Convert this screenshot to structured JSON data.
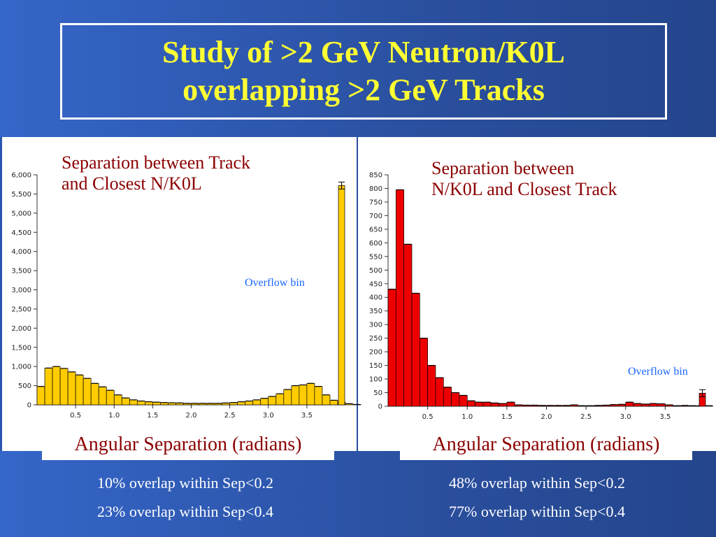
{
  "title": {
    "line1": "Study of >2 GeV Neutron/K0L",
    "line2": "overlapping >2 GeV Tracks"
  },
  "chart_data": [
    {
      "type": "bar",
      "title": "Separation between   Track and Closest N/K0L",
      "title_lines": [
        "Separation between   Track",
        "and Closest N/K0L"
      ],
      "xlabel": "Angular Separation (radians)",
      "ylabel": "",
      "bar_color": "#ffcc00",
      "bin_width": 0.1,
      "x_start": 0.0,
      "xlim": [
        0.0,
        4.0
      ],
      "ylim": [
        0,
        6000
      ],
      "y_ticks": [
        0,
        500,
        1000,
        1500,
        2000,
        2500,
        3000,
        3500,
        4000,
        4500,
        5000,
        5500,
        6000
      ],
      "y_tick_labels": [
        "0",
        "500",
        "1,000",
        "1,500",
        "2,000",
        "2,500",
        "3,000",
        "3,500",
        "4,000",
        "4,500",
        "5,000",
        "5,500",
        "6,000"
      ],
      "x_ticks": [
        0.5,
        1.0,
        1.5,
        2.0,
        2.5,
        3.0,
        3.5
      ],
      "x_tick_labels": [
        "0.5",
        "1.0",
        "1.5",
        "2.0",
        "2.5",
        "3.0",
        "3.5"
      ],
      "values": [
        480,
        960,
        1000,
        950,
        860,
        780,
        690,
        560,
        470,
        380,
        260,
        180,
        130,
        100,
        80,
        70,
        60,
        55,
        50,
        40,
        40,
        40,
        40,
        40,
        50,
        60,
        80,
        100,
        130,
        170,
        220,
        290,
        400,
        500,
        520,
        560,
        480,
        260,
        120,
        70,
        30,
        10
      ],
      "overflow_value": 5720,
      "overflow_label": "Overflow bin"
    },
    {
      "type": "bar",
      "title": "Separation between N/K0L and Closest Track",
      "title_lines": [
        "Separation between",
        "N/K0L and Closest Track"
      ],
      "xlabel": "Angular Separation (radians)",
      "ylabel": "",
      "bar_color": "#ee0000",
      "bin_width": 0.1,
      "x_start": 0.0,
      "xlim": [
        0.0,
        4.0
      ],
      "ylim": [
        0,
        850
      ],
      "y_ticks": [
        0,
        50,
        100,
        150,
        200,
        250,
        300,
        350,
        400,
        450,
        500,
        550,
        600,
        650,
        700,
        750,
        800,
        850
      ],
      "y_tick_labels": [
        "0",
        "50",
        "100",
        "150",
        "200",
        "250",
        "300",
        "350",
        "400",
        "450",
        "500",
        "550",
        "600",
        "650",
        "700",
        "750",
        "800",
        "850"
      ],
      "x_ticks": [
        0.5,
        1.0,
        1.5,
        2.0,
        2.5,
        3.0,
        3.5
      ],
      "x_tick_labels": [
        "0.5",
        "1.0",
        "1.5",
        "2.0",
        "2.5",
        "3.0",
        "3.5"
      ],
      "values": [
        430,
        795,
        595,
        415,
        250,
        150,
        105,
        70,
        50,
        40,
        20,
        15,
        15,
        12,
        10,
        15,
        5,
        4,
        4,
        3,
        3,
        3,
        3,
        5,
        2,
        2,
        3,
        4,
        6,
        7,
        15,
        10,
        8,
        10,
        9,
        5,
        2,
        3,
        2,
        2,
        2
      ],
      "overflow_value": 48,
      "overflow_label": "Overflow bin"
    }
  ],
  "stats": {
    "left": [
      "10% overlap within Sep<0.2",
      "23% overlap within Sep<0.4"
    ],
    "right": [
      "48% overlap within Sep<0.2",
      "77% overlap within Sep<0.4"
    ]
  }
}
